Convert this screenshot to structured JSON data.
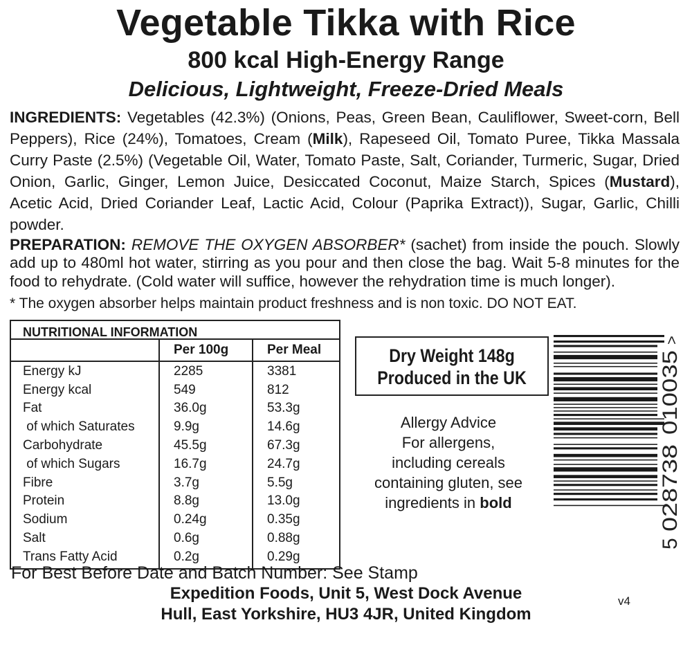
{
  "title": "Vegetable Tikka with Rice",
  "subtitle": "800 kcal High-Energy Range",
  "tagline": "Delicious, Lightweight, Freeze-Dried Meals",
  "ingredients": {
    "label": "INGREDIENTS:",
    "segments": [
      {
        "text": " Vegetables (42.3%) (Onions, Peas, Green Bean, Cauliflower, Sweet-corn, Bell Peppers), Rice (24%), Tomatoes, Cream (",
        "bold": false
      },
      {
        "text": "Milk",
        "bold": true
      },
      {
        "text": "), Rapeseed Oil, Tomato Puree, Tikka Massala Curry Paste (2.5%) (Vegetable Oil, Water, Tomato Paste, Salt, Coriander, Turmeric, Sugar,  Dried Onion, Garlic, Ginger, Lemon Juice, Desiccated Coconut, Maize Starch, Spices (",
        "bold": false
      },
      {
        "text": "Mustard",
        "bold": true
      },
      {
        "text": "), Acetic Acid, Dried Coriander Leaf, Lactic Acid, Colour (Paprika Extract)), Sugar, Garlic, Chilli powder.",
        "bold": false
      }
    ]
  },
  "preparation": {
    "label": "PREPARATION:",
    "warning": "REMOVE THE OXYGEN ABSORBER*",
    "text": " (sachet) from inside the pouch. Slowly add up to 480ml hot water, stirring as you pour and then close the bag. Wait 5-8 minutes for the food to rehydrate. (Cold water will suffice, however the rehydration time is much longer)."
  },
  "footnote": "* The oxygen absorber helps maintain product freshness and is non toxic.  DO NOT EAT.",
  "nutrition": {
    "heading": "NUTRITIONAL INFORMATION",
    "columns": [
      "",
      "Per 100g",
      "Per Meal"
    ],
    "rows": [
      [
        "Energy kJ",
        "2285",
        "3381"
      ],
      [
        "Energy kcal",
        "549",
        "812"
      ],
      [
        "Fat",
        "36.0g",
        "53.3g"
      ],
      [
        " of which Saturates",
        "9.9g",
        "14.6g"
      ],
      [
        "Carbohydrate",
        "45.5g",
        "67.3g"
      ],
      [
        " of which Sugars",
        "16.7g",
        "24.7g"
      ],
      [
        "Fibre",
        "3.7g",
        "5.5g"
      ],
      [
        "Protein",
        "8.8g",
        "13.0g"
      ],
      [
        "Sodium",
        "0.24g",
        "0.35g"
      ],
      [
        "Salt",
        "0.6g",
        "0.88g"
      ],
      [
        "Trans Fatty Acid",
        "0.2g",
        "0.29g"
      ]
    ]
  },
  "dry_weight": "Dry Weight 148g",
  "produced": "Produced in the UK",
  "allergy": {
    "lines": [
      "Allergy Advice",
      "For allergens,",
      "including cereals",
      "containing gluten, see"
    ],
    "last": "ingredients in ",
    "last_bold": "bold"
  },
  "barcode": {
    "first": "5",
    "left": "028738",
    "right": "010035",
    "end": ">"
  },
  "best_before": "For Best Before Date and Batch Number: See Stamp",
  "address1": "Expedition Foods, Unit 5, West Dock Avenue",
  "address2": "Hull, East Yorkshire, HU3 4JR, United Kingdom",
  "version": "v4"
}
